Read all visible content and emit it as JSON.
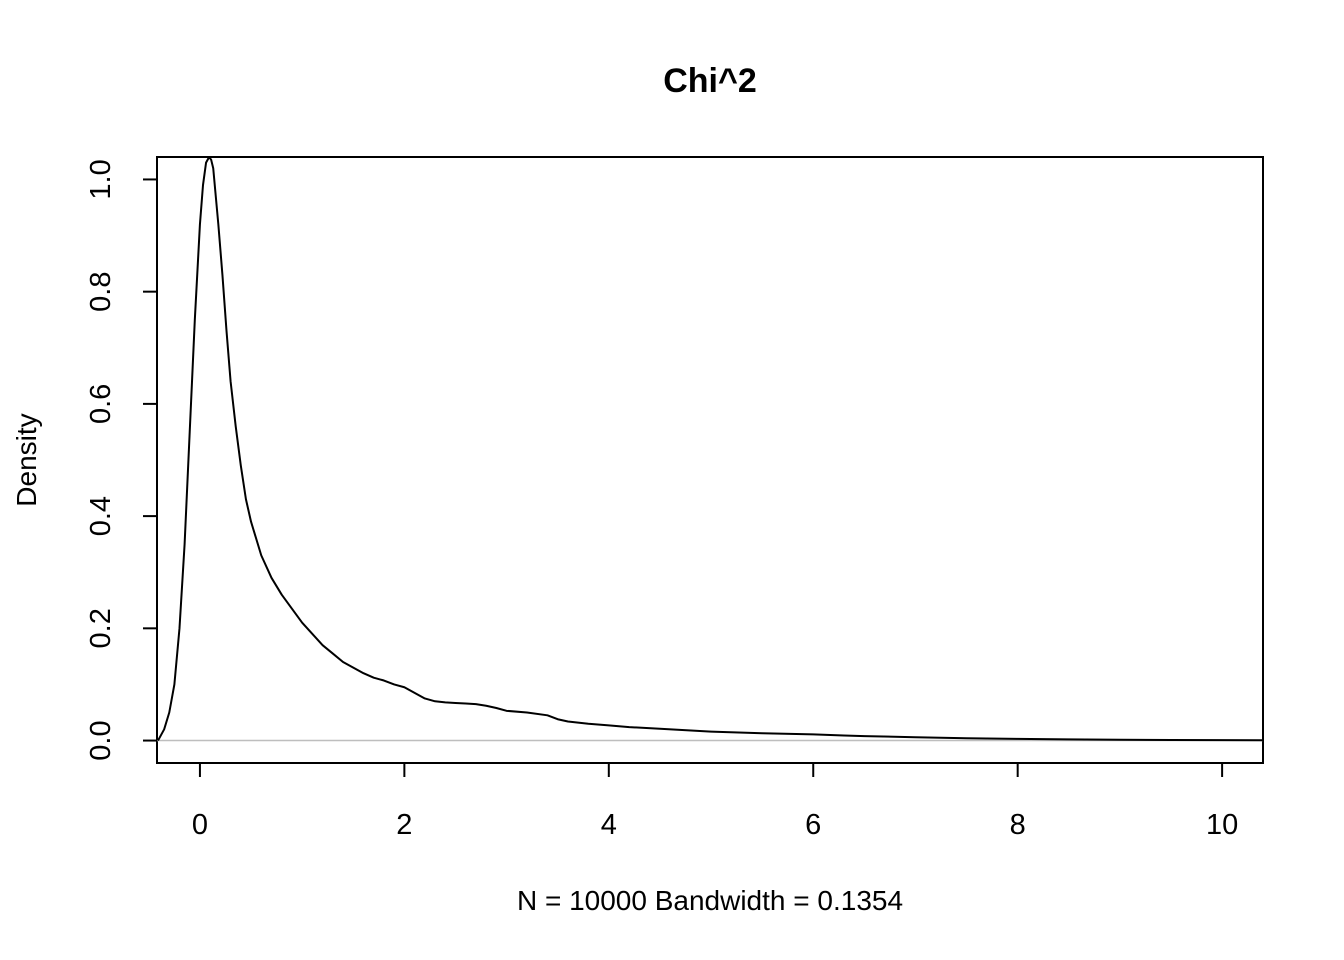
{
  "chart_data": {
    "type": "line",
    "title": "Chi^2",
    "xlabel": "N = 10000   Bandwidth = 0.1354",
    "ylabel": "Density",
    "xlim": [
      -0.42,
      10.4
    ],
    "ylim": [
      -0.04,
      1.04
    ],
    "x_ticks": [
      0,
      2,
      4,
      6,
      8,
      10
    ],
    "x_tick_labels": [
      "0",
      "2",
      "4",
      "6",
      "8",
      "10"
    ],
    "y_ticks": [
      0.0,
      0.2,
      0.4,
      0.6,
      0.8,
      1.0
    ],
    "y_tick_labels": [
      "0.0",
      "0.2",
      "0.4",
      "0.6",
      "0.8",
      "1.0"
    ],
    "grid": false,
    "legend": "none",
    "reference_line_y": 0,
    "colors": {
      "line": "#000000",
      "reference_line": "#bebebe"
    },
    "series": [
      {
        "x": [
          -0.41,
          -0.35,
          -0.3,
          -0.25,
          -0.2,
          -0.15,
          -0.1,
          -0.05,
          0.0,
          0.03,
          0.06,
          0.09,
          0.11,
          0.13,
          0.15,
          0.18,
          0.22,
          0.26,
          0.3,
          0.35,
          0.4,
          0.45,
          0.5,
          0.6,
          0.7,
          0.8,
          0.9,
          1.0,
          1.1,
          1.2,
          1.3,
          1.4,
          1.5,
          1.6,
          1.7,
          1.8,
          1.9,
          2.0,
          2.1,
          2.2,
          2.3,
          2.4,
          2.5,
          2.6,
          2.7,
          2.8,
          2.9,
          3.0,
          3.2,
          3.4,
          3.5,
          3.6,
          3.8,
          4.0,
          4.2,
          4.5,
          5.0,
          5.5,
          6.0,
          6.3,
          6.5,
          7.0,
          7.5,
          8.0,
          8.5,
          9.0,
          9.5,
          10.0,
          10.4
        ],
        "y": [
          0.0,
          0.02,
          0.05,
          0.1,
          0.2,
          0.35,
          0.55,
          0.75,
          0.92,
          0.99,
          1.03,
          1.04,
          1.035,
          1.02,
          0.98,
          0.92,
          0.83,
          0.73,
          0.64,
          0.56,
          0.49,
          0.43,
          0.39,
          0.33,
          0.29,
          0.26,
          0.235,
          0.21,
          0.19,
          0.17,
          0.155,
          0.14,
          0.13,
          0.12,
          0.112,
          0.107,
          0.1,
          0.095,
          0.085,
          0.075,
          0.07,
          0.068,
          0.067,
          0.066,
          0.065,
          0.062,
          0.058,
          0.053,
          0.05,
          0.045,
          0.038,
          0.034,
          0.03,
          0.027,
          0.024,
          0.021,
          0.016,
          0.013,
          0.011,
          0.009,
          0.008,
          0.006,
          0.004,
          0.003,
          0.002,
          0.0015,
          0.001,
          0.0008,
          0.0005
        ]
      }
    ]
  }
}
